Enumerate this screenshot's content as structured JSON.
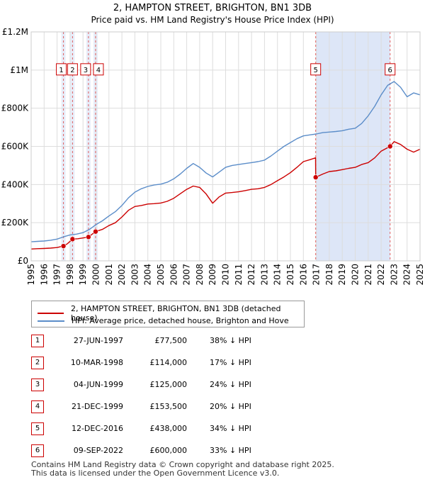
{
  "chart_data": {
    "type": "line",
    "title": "2, HAMPTON STREET, BRIGHTON, BN1 3DB",
    "subtitle": "Price paid vs. HM Land Registry's House Price Index (HPI)",
    "xlim": [
      1995,
      2025
    ],
    "ylim": [
      0,
      1200000
    ],
    "x_ticks": [
      "1995",
      "1996",
      "1997",
      "1998",
      "1999",
      "2000",
      "2001",
      "2002",
      "2003",
      "2004",
      "2005",
      "2006",
      "2007",
      "2008",
      "2009",
      "2010",
      "2011",
      "2012",
      "2013",
      "2014",
      "2015",
      "2016",
      "2017",
      "2018",
      "2019",
      "2020",
      "2021",
      "2022",
      "2023",
      "2024",
      "2025"
    ],
    "y_ticks": [
      {
        "value": 0,
        "label": "£0"
      },
      {
        "value": 200000,
        "label": "£200K"
      },
      {
        "value": 400000,
        "label": "£400K"
      },
      {
        "value": 600000,
        "label": "£600K"
      },
      {
        "value": 800000,
        "label": "£800K"
      },
      {
        "value": 1000000,
        "label": "£1M"
      },
      {
        "value": 1200000,
        "label": "£1.2M"
      }
    ],
    "grid": true,
    "shaded_ranges": [
      [
        2016.95,
        2022.69
      ]
    ],
    "series": [
      {
        "name": "2, HAMPTON STREET, BRIGHTON, BN1 3DB (detached house)",
        "color": "#cc0000",
        "x": [
          1995.0,
          1995.5,
          1996.0,
          1996.5,
          1997.0,
          1997.49,
          1997.8,
          1998.19,
          1998.6,
          1999.0,
          1999.42,
          1999.97,
          2000.5,
          2001.0,
          2001.5,
          2002.0,
          2002.5,
          2003.0,
          2003.5,
          2004.0,
          2004.5,
          2005.0,
          2005.5,
          2006.0,
          2006.5,
          2007.0,
          2007.5,
          2008.0,
          2008.5,
          2009.0,
          2009.5,
          2010.0,
          2010.5,
          2011.0,
          2011.5,
          2012.0,
          2012.5,
          2013.0,
          2013.5,
          2014.0,
          2014.5,
          2015.0,
          2015.5,
          2016.0,
          2016.5,
          2016.94,
          2016.95,
          2017.5,
          2018.0,
          2018.5,
          2019.0,
          2019.5,
          2020.0,
          2020.5,
          2021.0,
          2021.5,
          2022.0,
          2022.69,
          2023.0,
          2023.5,
          2024.0,
          2024.5,
          2025.0
        ],
        "values": [
          62000,
          64000,
          65000,
          67000,
          70000,
          77500,
          90000,
          114000,
          116000,
          120000,
          125000,
          153500,
          165000,
          185000,
          200000,
          230000,
          265000,
          285000,
          290000,
          298000,
          300000,
          303000,
          312000,
          328000,
          352000,
          375000,
          392000,
          385000,
          350000,
          302000,
          335000,
          355000,
          358000,
          362000,
          368000,
          375000,
          378000,
          385000,
          400000,
          420000,
          440000,
          462000,
          490000,
          520000,
          530000,
          540000,
          438000,
          455000,
          468000,
          472000,
          478000,
          485000,
          490000,
          505000,
          515000,
          540000,
          575000,
          600000,
          625000,
          610000,
          585000,
          570000,
          585000
        ]
      },
      {
        "name": "HPI: Average price, detached house, Brighton and Hove",
        "color": "#5b8dc9",
        "x": [
          1995.0,
          1995.5,
          1996.0,
          1996.5,
          1997.0,
          1997.5,
          1998.0,
          1998.5,
          1999.0,
          1999.5,
          2000.0,
          2000.5,
          2001.0,
          2001.5,
          2002.0,
          2002.5,
          2003.0,
          2003.5,
          2004.0,
          2004.5,
          2005.0,
          2005.5,
          2006.0,
          2006.5,
          2007.0,
          2007.5,
          2008.0,
          2008.5,
          2009.0,
          2009.5,
          2010.0,
          2010.5,
          2011.0,
          2011.5,
          2012.0,
          2012.5,
          2013.0,
          2013.5,
          2014.0,
          2014.5,
          2015.0,
          2015.5,
          2016.0,
          2016.5,
          2017.0,
          2017.5,
          2018.0,
          2018.5,
          2019.0,
          2019.5,
          2020.0,
          2020.5,
          2021.0,
          2021.5,
          2022.0,
          2022.5,
          2023.0,
          2023.5,
          2024.0,
          2024.5,
          2025.0
        ],
        "values": [
          100000,
          102000,
          104000,
          108000,
          114000,
          126000,
          136000,
          140000,
          148000,
          165000,
          190000,
          210000,
          235000,
          258000,
          290000,
          330000,
          360000,
          378000,
          390000,
          398000,
          402000,
          412000,
          430000,
          455000,
          485000,
          510000,
          490000,
          460000,
          440000,
          465000,
          490000,
          500000,
          505000,
          510000,
          515000,
          520000,
          528000,
          550000,
          575000,
          600000,
          620000,
          640000,
          655000,
          660000,
          665000,
          672000,
          675000,
          678000,
          682000,
          690000,
          695000,
          720000,
          760000,
          810000,
          870000,
          920000,
          940000,
          910000,
          860000,
          880000,
          870000
        ]
      }
    ],
    "sale_markers": [
      {
        "label": "1",
        "x": 1997.49,
        "price": 77500
      },
      {
        "label": "2",
        "x": 1998.19,
        "price": 114000
      },
      {
        "label": "3",
        "x": 1999.42,
        "price": 125000
      },
      {
        "label": "4",
        "x": 1999.97,
        "price": 153500
      },
      {
        "label": "5",
        "x": 2016.95,
        "price": 438000
      },
      {
        "label": "6",
        "x": 2022.69,
        "price": 600000
      }
    ]
  },
  "legend": {
    "property": "2, HAMPTON STREET, BRIGHTON, BN1 3DB (detached house)",
    "hpi": "HPI: Average price, detached house, Brighton and Hove"
  },
  "transactions": [
    {
      "num": "1",
      "date": "27-JUN-1997",
      "price": "£77,500",
      "hpi": "38% ↓ HPI"
    },
    {
      "num": "2",
      "date": "10-MAR-1998",
      "price": "£114,000",
      "hpi": "17% ↓ HPI"
    },
    {
      "num": "3",
      "date": "04-JUN-1999",
      "price": "£125,000",
      "hpi": "24% ↓ HPI"
    },
    {
      "num": "4",
      "date": "21-DEC-1999",
      "price": "£153,500",
      "hpi": "20% ↓ HPI"
    },
    {
      "num": "5",
      "date": "12-DEC-2016",
      "price": "£438,000",
      "hpi": "34% ↓ HPI"
    },
    {
      "num": "6",
      "date": "09-SEP-2022",
      "price": "£600,000",
      "hpi": "33% ↓ HPI"
    }
  ],
  "footer": {
    "line1": "Contains HM Land Registry data © Crown copyright and database right 2025.",
    "line2": "This data is licensed under the Open Government Licence v3.0."
  },
  "colors": {
    "property": "#cc0000",
    "hpi": "#5b8dc9",
    "shade": "#dde6f7"
  }
}
